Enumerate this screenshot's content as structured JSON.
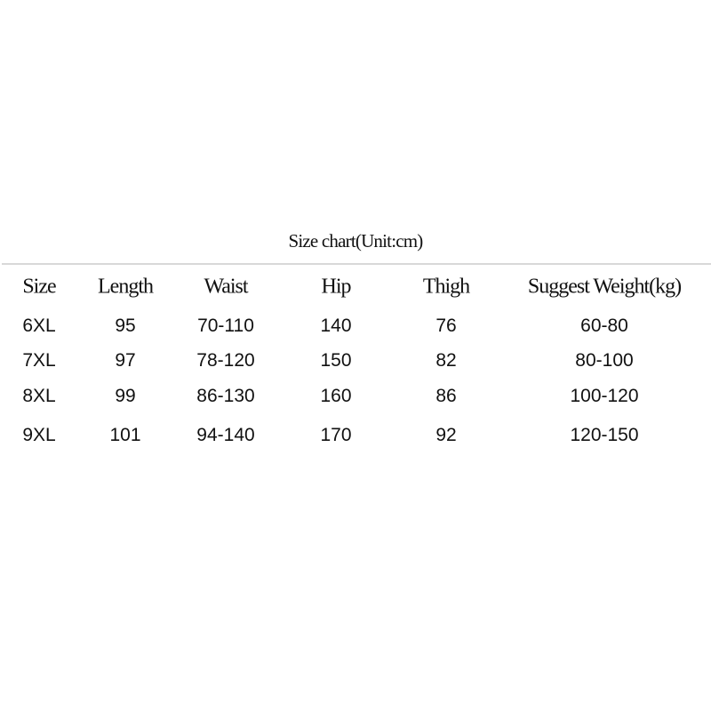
{
  "title": "Size chart(Unit:cm)",
  "table": {
    "headers": [
      "Size",
      "Length",
      "Waist",
      "Hip",
      "Thigh",
      "Suggest Weight(kg)"
    ],
    "rows": [
      [
        "6XL",
        "95",
        "70-110",
        "140",
        "76",
        "60-80"
      ],
      [
        "7XL",
        "97",
        "78-120",
        "150",
        "82",
        "80-100"
      ],
      [
        "8XL",
        "99",
        "86-130",
        "160",
        "86",
        "100-120"
      ],
      [
        "9XL",
        "101",
        "94-140",
        "170",
        "92",
        "120-150"
      ]
    ]
  }
}
